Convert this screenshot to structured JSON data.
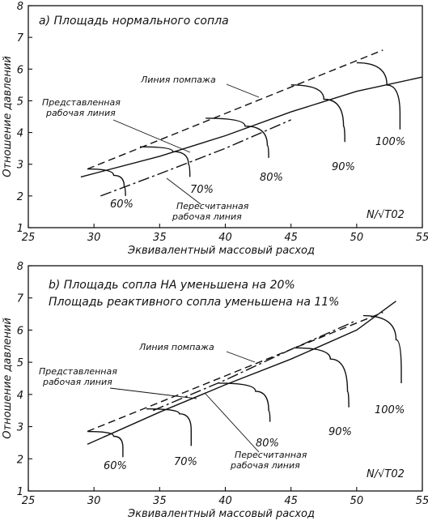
{
  "chart_data": [
    {
      "type": "line",
      "title": "a) Площадь нормального сопла",
      "xlabel": "Эквивалентный массовый расход",
      "ylabel": "Отношение давлений",
      "x_param_label": "N/√T02",
      "xlim": [
        25,
        55
      ],
      "ylim": [
        1,
        8
      ],
      "xticks": [
        "25",
        "30",
        "35",
        "40",
        "45",
        "50",
        "55"
      ],
      "yticks": [
        "1",
        "2",
        "3",
        "4",
        "5",
        "6",
        "7",
        "8"
      ],
      "annotations": {
        "surge_line": "Линия помпажа",
        "presented_line": "Представленная рабочая линия",
        "recalc_line": "Пересчитанная рабочая линия"
      },
      "surge_line": [
        [
          29.5,
          2.85
        ],
        [
          52,
          6.6
        ]
      ],
      "presented_working_line": [
        [
          29,
          2.6
        ],
        [
          35,
          3.25
        ],
        [
          40,
          3.9
        ],
        [
          45,
          4.65
        ],
        [
          50,
          5.3
        ],
        [
          55,
          5.75
        ]
      ],
      "recalculated_working_line": [
        [
          30.5,
          2.0
        ],
        [
          35,
          2.7
        ],
        [
          40,
          3.5
        ],
        [
          45,
          4.4
        ]
      ],
      "speed_lines": [
        {
          "label": "60%",
          "points": [
            [
              29.5,
              2.85
            ],
            [
              31.5,
              2.65
            ],
            [
              32.3,
              2.3
            ],
            [
              32.4,
              2.0
            ]
          ]
        },
        {
          "label": "70%",
          "points": [
            [
              33.5,
              3.55
            ],
            [
              36,
              3.4
            ],
            [
              37.2,
              3.0
            ],
            [
              37.3,
              2.6
            ]
          ]
        },
        {
          "label": "80%",
          "points": [
            [
              38.5,
              4.45
            ],
            [
              41.5,
              4.2
            ],
            [
              43.2,
              3.6
            ],
            [
              43.3,
              3.2
            ]
          ]
        },
        {
          "label": "90%",
          "points": [
            [
              45,
              5.5
            ],
            [
              47.5,
              5.05
            ],
            [
              49,
              4.2
            ],
            [
              49.1,
              3.7
            ]
          ]
        },
        {
          "label": "100%",
          "points": [
            [
              50,
              6.2
            ],
            [
              52.3,
              5.5
            ],
            [
              53.3,
              4.6
            ],
            [
              53.3,
              4.1
            ]
          ]
        }
      ]
    },
    {
      "type": "line",
      "title": "b) Площадь сопла НА уменьшена на 20%",
      "subtitle": "Площадь реактивного сопла уменьшена на 11%",
      "xlabel": "Эквивалентный массовый расход",
      "ylabel": "Отношение давлений",
      "x_param_label": "N/√T02",
      "xlim": [
        25,
        55
      ],
      "ylim": [
        1,
        8
      ],
      "xticks": [
        "25",
        "30",
        "35",
        "40",
        "45",
        "50",
        "55"
      ],
      "yticks": [
        "1",
        "2",
        "3",
        "4",
        "5",
        "6",
        "7",
        "8"
      ],
      "annotations": {
        "surge_line": "Линия помпажа",
        "presented_line": "Представленная рабочая линия",
        "recalc_line": "Пересчитанная рабочая линия"
      },
      "surge_line": [
        [
          29.5,
          2.85
        ],
        [
          52,
          6.55
        ]
      ],
      "presented_working_line": [
        [
          29.5,
          2.45
        ],
        [
          35,
          3.45
        ],
        [
          40,
          4.3
        ],
        [
          45,
          5.1
        ],
        [
          50,
          6.0
        ],
        [
          53,
          6.9
        ]
      ],
      "recalculated_working_line": [
        [
          34.5,
          3.5
        ],
        [
          40,
          4.45
        ],
        [
          45,
          5.4
        ],
        [
          50,
          6.3
        ]
      ],
      "speed_lines": [
        {
          "label": "60%",
          "points": [
            [
              29.5,
              2.85
            ],
            [
              31.5,
              2.7
            ],
            [
              32.2,
              2.35
            ],
            [
              32.2,
              2.05
            ]
          ]
        },
        {
          "label": "70%",
          "points": [
            [
              34,
              3.55
            ],
            [
              36.5,
              3.4
            ],
            [
              37.4,
              2.9
            ],
            [
              37.4,
              2.4
            ]
          ]
        },
        {
          "label": "80%",
          "points": [
            [
              39.5,
              4.35
            ],
            [
              42.3,
              4.1
            ],
            [
              43.3,
              3.5
            ],
            [
              43.4,
              3.15
            ]
          ]
        },
        {
          "label": "90%",
          "points": [
            [
              45.2,
              5.45
            ],
            [
              48,
              5.1
            ],
            [
              49.3,
              4.1
            ],
            [
              49.4,
              3.6
            ]
          ]
        },
        {
          "label": "100%",
          "points": [
            [
              50.5,
              6.45
            ],
            [
              53,
              5.7
            ],
            [
              53.4,
              4.7
            ],
            [
              53.4,
              4.35
            ]
          ]
        }
      ]
    }
  ]
}
